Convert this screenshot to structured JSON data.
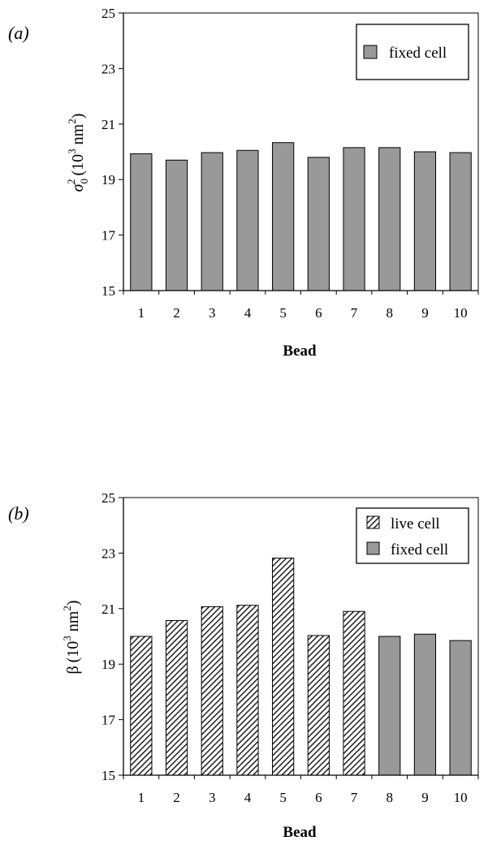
{
  "chart_data": [
    {
      "panel_label": "(a)",
      "type": "bar",
      "categories": [
        "1",
        "2",
        "3",
        "4",
        "5",
        "6",
        "7",
        "8",
        "9",
        "10"
      ],
      "series": [
        {
          "name": "fixed cell",
          "pattern": "solid",
          "values": [
            19.93,
            19.7,
            19.97,
            20.05,
            20.33,
            19.8,
            20.15,
            20.15,
            20.0,
            19.97
          ]
        }
      ],
      "xlabel": "Bead",
      "ylabel": {
        "symbol": "σ",
        "sub": "0",
        "sup": "2",
        "unit_prefix": "(10",
        "unit_exp": "3",
        "unit_mid": " nm",
        "unit_exp2": "2",
        "unit_suffix": ")"
      },
      "ylim": [
        15,
        25
      ],
      "yticks": [
        15,
        17,
        19,
        21,
        23,
        25
      ],
      "legend": {
        "position": "top-right",
        "entries": [
          "fixed cell"
        ]
      },
      "grid": false,
      "colors": {
        "fixed": "#999999"
      }
    },
    {
      "panel_label": "(b)",
      "type": "bar",
      "categories": [
        "1",
        "2",
        "3",
        "4",
        "5",
        "6",
        "7",
        "8",
        "9",
        "10"
      ],
      "series": [
        {
          "name": "live cell",
          "pattern": "hatched",
          "values": [
            20.0,
            20.57,
            21.07,
            21.12,
            22.82,
            20.03,
            20.9,
            null,
            null,
            null
          ]
        },
        {
          "name": "fixed cell",
          "pattern": "solid",
          "values": [
            null,
            null,
            null,
            null,
            null,
            null,
            null,
            20.0,
            20.08,
            19.85
          ]
        }
      ],
      "xlabel": "Bead",
      "ylabel": {
        "symbol": "β",
        "sub": "",
        "sup": "",
        "unit_prefix": "(10",
        "unit_exp": "3",
        "unit_mid": " nm",
        "unit_exp2": "2",
        "unit_suffix": ")"
      },
      "ylim": [
        15,
        25
      ],
      "yticks": [
        15,
        17,
        19,
        21,
        23,
        25
      ],
      "legend": {
        "position": "top-right",
        "entries": [
          "live cell",
          "fixed cell"
        ]
      },
      "grid": false,
      "colors": {
        "fixed": "#999999",
        "hatch": "#000000"
      }
    }
  ]
}
